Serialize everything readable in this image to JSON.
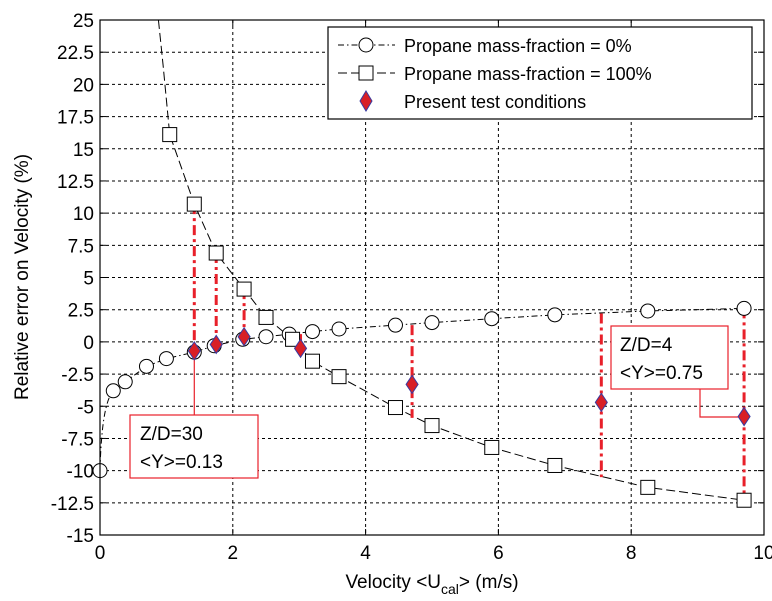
{
  "chart_data": {
    "type": "scatter",
    "title": "",
    "xlabel_main": "Velocity <U",
    "xlabel_sub": "cal",
    "xlabel_tail": "> (m/s)",
    "ylabel": "Relative error on Velocity (%)",
    "xlim": [
      0,
      10
    ],
    "ylim": [
      -15,
      25
    ],
    "grid": true,
    "legend_position": "top-right",
    "x_ticks": [
      "0",
      "2",
      "4",
      "6",
      "8",
      "10"
    ],
    "y_ticks": [
      "-15",
      "-12.5",
      "-10",
      "-7.5",
      "-5",
      "-2.5",
      "0",
      "2.5",
      "5",
      "7.5",
      "10",
      "12.5",
      "15",
      "17.5",
      "20",
      "22.5",
      "25"
    ],
    "series": [
      {
        "name": "Propane mass-fraction = 0%",
        "marker": "circle",
        "x": [
          0.0,
          0.2,
          0.38,
          0.7,
          1.0,
          1.42,
          1.72,
          2.15,
          2.5,
          2.85,
          3.2,
          3.6,
          4.45,
          5.0,
          5.9,
          6.85,
          8.25,
          9.7
        ],
        "y": [
          -10.0,
          -3.8,
          -3.1,
          -1.9,
          -1.3,
          -0.8,
          -0.3,
          0.2,
          0.4,
          0.6,
          0.8,
          1.0,
          1.3,
          1.5,
          1.8,
          2.1,
          2.4,
          2.6
        ]
      },
      {
        "name": "Propane mass-fraction = 100%",
        "marker": "square",
        "x": [
          1.05,
          1.42,
          1.75,
          2.17,
          2.5,
          2.9,
          3.2,
          3.6,
          4.45,
          5.0,
          5.9,
          6.85,
          8.25,
          9.7
        ],
        "y": [
          16.1,
          10.7,
          6.9,
          4.1,
          1.9,
          0.2,
          -1.5,
          -2.7,
          -5.1,
          -6.5,
          -8.2,
          -9.6,
          -11.3,
          -12.3
        ]
      },
      {
        "name": "Present test conditions",
        "marker": "diamond",
        "x": [
          1.42,
          1.75,
          2.17,
          3.02,
          4.7,
          7.55,
          9.7
        ],
        "y": [
          -0.7,
          -0.2,
          0.4,
          -0.5,
          -3.3,
          -4.7,
          -5.8
        ]
      }
    ],
    "ranges": [
      {
        "x": 1.42,
        "y_low": -0.8,
        "y_high": 10.7
      },
      {
        "x": 1.75,
        "y_low": -0.3,
        "y_high": 6.9
      },
      {
        "x": 2.17,
        "y_low": 0.2,
        "y_high": 4.1
      },
      {
        "x": 3.02,
        "y_low": -0.8,
        "y_high": 0.6
      },
      {
        "x": 4.7,
        "y_low": -5.9,
        "y_high": 1.3
      },
      {
        "x": 7.55,
        "y_low": -10.5,
        "y_high": 2.2
      },
      {
        "x": 9.7,
        "y_low": -12.3,
        "y_high": 2.6
      }
    ],
    "annotations": [
      {
        "line1": "Z/D=30",
        "line2": "<Y>=0.13"
      },
      {
        "line1": "Z/D=4",
        "line2": "<Y>=0.75"
      }
    ],
    "colors": {
      "range_line": "#e8202a",
      "diamond_fill": "#d81f26",
      "diamond_edge": "#3a3aa0",
      "annotation_border": "#e8202a",
      "grid": "#000000"
    }
  }
}
